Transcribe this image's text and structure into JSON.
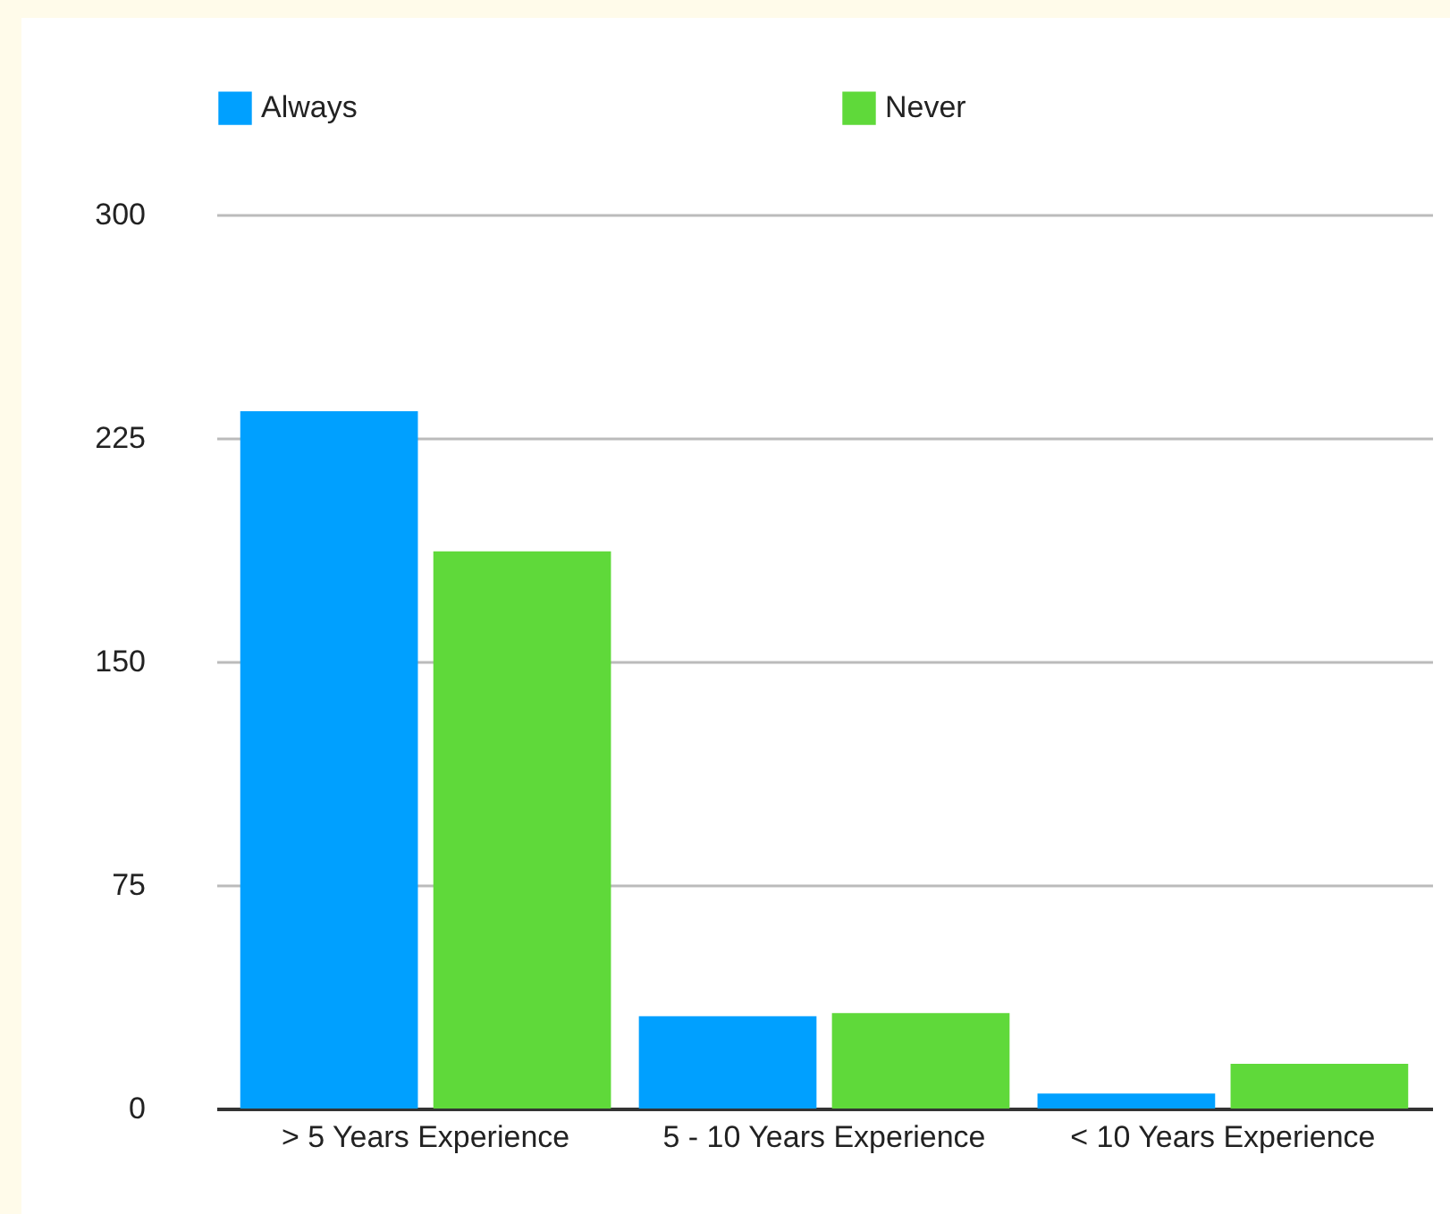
{
  "chart_data": {
    "type": "bar",
    "categories": [
      "> 5 Years Experience",
      "5 - 10 Years Experience",
      "< 10 Years Experience"
    ],
    "series": [
      {
        "name": "Always",
        "color": "#00a0ff",
        "values": [
          234,
          31,
          5
        ]
      },
      {
        "name": "Never",
        "color": "#5fd93a",
        "values": [
          187,
          32,
          15
        ]
      }
    ],
    "ylim": [
      0,
      300
    ],
    "yticks": [
      0,
      75,
      150,
      225,
      300
    ],
    "grid": "y",
    "legend": "top"
  }
}
